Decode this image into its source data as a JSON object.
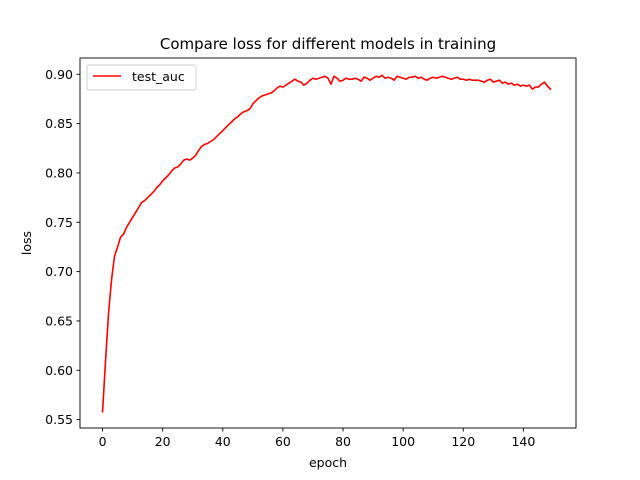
{
  "chart_data": {
    "type": "line",
    "title": "Compare loss for different models in training",
    "xlabel": "epoch",
    "ylabel": "loss",
    "xlim": [
      -7.5,
      157.5
    ],
    "ylim": [
      0.5415,
      0.9165
    ],
    "xticks": [
      0,
      20,
      40,
      60,
      80,
      100,
      120,
      140
    ],
    "yticks": [
      0.55,
      0.6,
      0.65,
      0.7,
      0.75,
      0.8,
      0.85,
      0.9
    ],
    "ytick_labels": [
      "0.55",
      "0.60",
      "0.65",
      "0.70",
      "0.75",
      "0.80",
      "0.85",
      "0.90"
    ],
    "grid": false,
    "legend_position": "top-left",
    "series": [
      {
        "name": "test_auc",
        "color": "#ff0000",
        "x_start": 0,
        "x_step": 1,
        "values": [
          0.558,
          0.61,
          0.658,
          0.692,
          0.716,
          0.725,
          0.735,
          0.738,
          0.745,
          0.75,
          0.755,
          0.76,
          0.765,
          0.77,
          0.772,
          0.775,
          0.778,
          0.781,
          0.785,
          0.788,
          0.792,
          0.795,
          0.798,
          0.802,
          0.805,
          0.806,
          0.809,
          0.813,
          0.814,
          0.813,
          0.815,
          0.818,
          0.823,
          0.827,
          0.829,
          0.83,
          0.832,
          0.834,
          0.837,
          0.84,
          0.843,
          0.846,
          0.849,
          0.852,
          0.855,
          0.857,
          0.86,
          0.862,
          0.863,
          0.865,
          0.87,
          0.873,
          0.876,
          0.878,
          0.879,
          0.88,
          0.881,
          0.883,
          0.886,
          0.888,
          0.887,
          0.889,
          0.891,
          0.893,
          0.895,
          0.893,
          0.892,
          0.889,
          0.891,
          0.894,
          0.896,
          0.895,
          0.896,
          0.897,
          0.898,
          0.896,
          0.89,
          0.898,
          0.896,
          0.893,
          0.894,
          0.896,
          0.895,
          0.895,
          0.896,
          0.895,
          0.893,
          0.897,
          0.896,
          0.894,
          0.896,
          0.898,
          0.897,
          0.899,
          0.896,
          0.897,
          0.896,
          0.894,
          0.898,
          0.897,
          0.896,
          0.895,
          0.897,
          0.897,
          0.898,
          0.896,
          0.897,
          0.895,
          0.894,
          0.896,
          0.897,
          0.896,
          0.897,
          0.898,
          0.897,
          0.896,
          0.895,
          0.896,
          0.897,
          0.895,
          0.895,
          0.894,
          0.895,
          0.894,
          0.894,
          0.894,
          0.893,
          0.892,
          0.894,
          0.895,
          0.892,
          0.893,
          0.894,
          0.891,
          0.892,
          0.89,
          0.891,
          0.889,
          0.89,
          0.888,
          0.889,
          0.888,
          0.889,
          0.885,
          0.887,
          0.887,
          0.89,
          0.892,
          0.888,
          0.885
        ]
      }
    ]
  }
}
